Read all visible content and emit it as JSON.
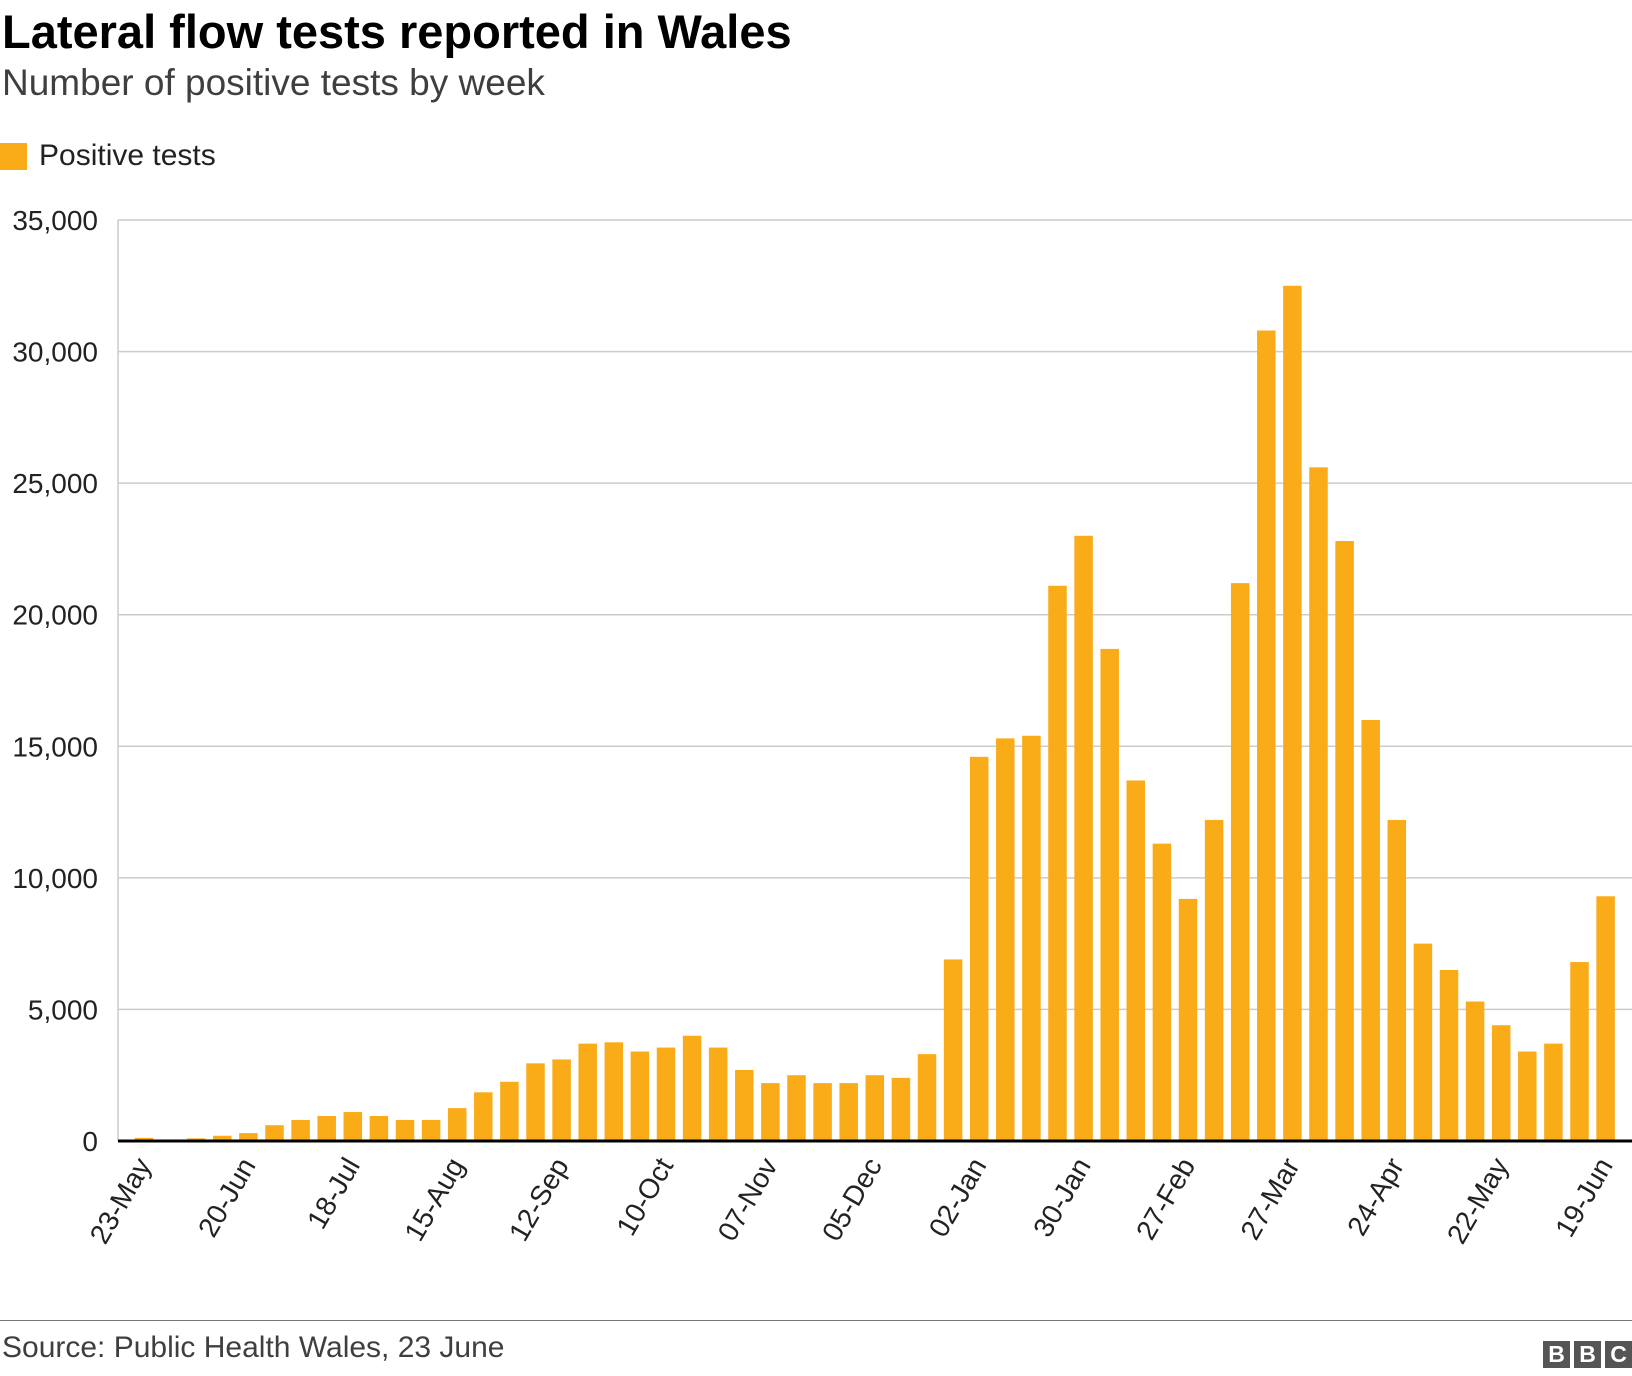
{
  "header": {
    "title": "Lateral flow tests reported in Wales",
    "subtitle": "Number of positive tests by week"
  },
  "legend": {
    "label": "Positive tests",
    "color": "#faab18"
  },
  "footer": {
    "source": "Source: Public Health Wales, 23 June",
    "logo_letters": [
      "B",
      "B",
      "C"
    ]
  },
  "colors": {
    "bar": "#faab18",
    "grid": "#cccccc",
    "baseline": "#000000"
  },
  "chart_data": {
    "type": "bar",
    "series_name": "Positive tests",
    "ylim": [
      0,
      35000
    ],
    "yticks": [
      0,
      5000,
      10000,
      15000,
      20000,
      25000,
      30000,
      35000
    ],
    "ytick_labels": [
      "0",
      "5,000",
      "10,000",
      "15,000",
      "20,000",
      "25,000",
      "30,000",
      "35,000"
    ],
    "grid": true,
    "legend_position": "top-left",
    "xtick_labels": [
      {
        "index": 0,
        "label": "23-May"
      },
      {
        "index": 4,
        "label": "20-Jun"
      },
      {
        "index": 8,
        "label": "18-Jul"
      },
      {
        "index": 12,
        "label": "15-Aug"
      },
      {
        "index": 16,
        "label": "12-Sep"
      },
      {
        "index": 20,
        "label": "10-Oct"
      },
      {
        "index": 24,
        "label": "07-Nov"
      },
      {
        "index": 28,
        "label": "05-Dec"
      },
      {
        "index": 32,
        "label": "02-Jan"
      },
      {
        "index": 36,
        "label": "30-Jan"
      },
      {
        "index": 40,
        "label": "27-Feb"
      },
      {
        "index": 44,
        "label": "27-Mar"
      },
      {
        "index": 48,
        "label": "24-Apr"
      },
      {
        "index": 52,
        "label": "22-May"
      },
      {
        "index": 56,
        "label": "19-Jun"
      }
    ],
    "values": [
      120,
      50,
      100,
      200,
      300,
      600,
      800,
      950,
      1100,
      950,
      800,
      800,
      1250,
      1850,
      2250,
      2950,
      3100,
      3700,
      3750,
      3400,
      3550,
      4000,
      3550,
      2700,
      2200,
      2500,
      2200,
      2200,
      2500,
      2400,
      3300,
      6900,
      14600,
      15300,
      15400,
      21100,
      23000,
      18700,
      13700,
      11300,
      9200,
      12200,
      21200,
      30800,
      32500,
      25600,
      22800,
      16000,
      12200,
      7500,
      6500,
      5300,
      4400,
      3400,
      3700,
      6800,
      9300
    ]
  }
}
